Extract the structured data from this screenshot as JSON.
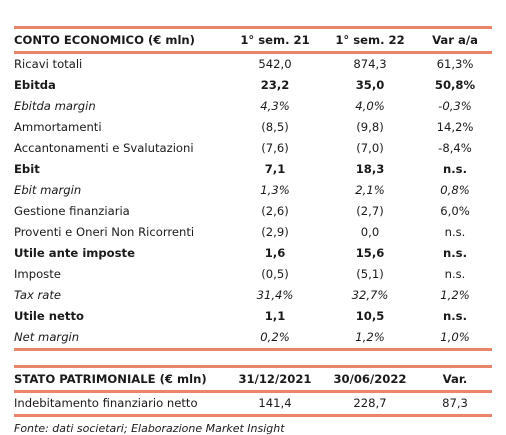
{
  "income_statement": {
    "header": [
      "CONTO ECONOMICO (€ mln)",
      "1° sem. 21",
      "1° sem. 22",
      "Var a/a"
    ],
    "rows": [
      {
        "label": "Ricavi totali",
        "v1": "542,0",
        "v2": "874,3",
        "v3": "61,3%",
        "style": "normal"
      },
      {
        "label": "Ebitda",
        "v1": "23,2",
        "v2": "35,0",
        "v3": "50,8%",
        "style": "bold"
      },
      {
        "label": "Ebitda margin",
        "v1": "4,3%",
        "v2": "4,0%",
        "v3": "-0,3%",
        "style": "italic"
      },
      {
        "label": "Ammortamenti",
        "v1": "(8,5)",
        "v2": "(9,8)",
        "v3": "14,2%",
        "style": "normal"
      },
      {
        "label": "Accantonamenti e Svalutazioni",
        "v1": "(7,6)",
        "v2": "(7,0)",
        "v3": "-8,4%",
        "style": "normal"
      },
      {
        "label": "Ebit",
        "v1": "7,1",
        "v2": "18,3",
        "v3": "n.s.",
        "style": "bold"
      },
      {
        "label": "Ebit margin",
        "v1": "1,3%",
        "v2": "2,1%",
        "v3": "0,8%",
        "style": "italic"
      },
      {
        "label": "Gestione finanziaria",
        "v1": "(2,6)",
        "v2": "(2,7)",
        "v3": "6,0%",
        "style": "normal"
      },
      {
        "label": "Proventi e Oneri Non Ricorrenti",
        "v1": "(2,9)",
        "v2": "0,0",
        "v3": "n.s.",
        "style": "normal"
      },
      {
        "label": "Utile ante imposte",
        "v1": "1,6",
        "v2": "15,6",
        "v3": "n.s.",
        "style": "bold"
      },
      {
        "label": "Imposte",
        "v1": "(0,5)",
        "v2": "(5,1)",
        "v3": "n.s.",
        "style": "normal"
      },
      {
        "label": "Tax rate",
        "v1": "31,4%",
        "v2": "32,7%",
        "v3": "1,2%",
        "style": "italic"
      },
      {
        "label": "Utile netto",
        "v1": "1,1",
        "v2": "10,5",
        "v3": "n.s.",
        "style": "bold"
      },
      {
        "label": "Net margin",
        "v1": "0,2%",
        "v2": "1,2%",
        "v3": "1,0%",
        "style": "italic"
      }
    ]
  },
  "balance_sheet": {
    "header": [
      "STATO PATRIMONIALE (€ mln)",
      "31/12/2021",
      "30/06/2022",
      "Var."
    ],
    "rows": [
      {
        "label": "Indebitamento finanziario netto",
        "v1": "141,4",
        "v2": "228,7",
        "v3": "87,3",
        "style": "normal"
      }
    ]
  },
  "source": "Fonte: dati societari; Elaborazione Market Insight",
  "colors": {
    "accent_rule": "#e8856a"
  }
}
